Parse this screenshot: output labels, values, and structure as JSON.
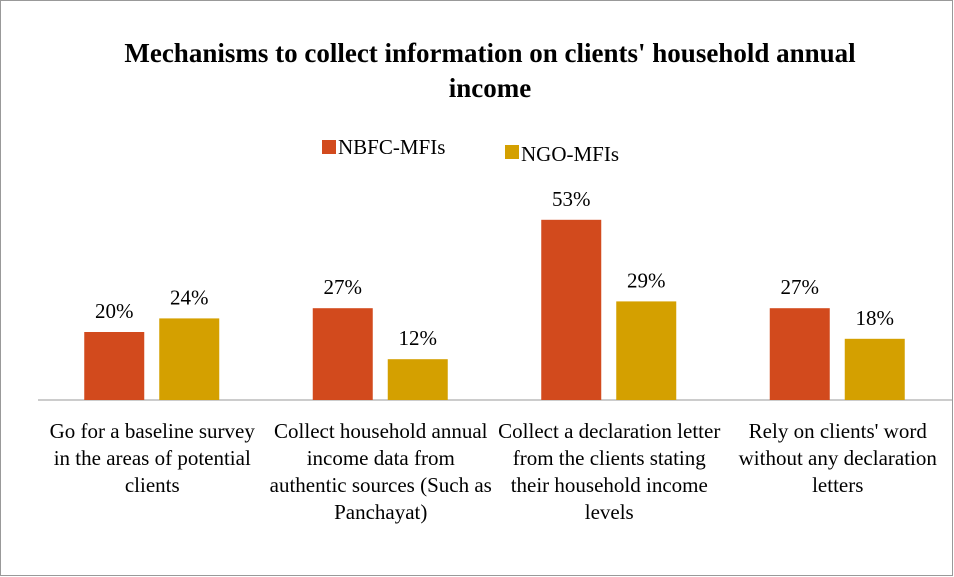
{
  "chart_data": {
    "type": "bar",
    "title": "Mechanisms to collect information on  clients' household annual income",
    "categories": [
      "Go for a baseline survey in the areas of potential clients",
      "Collect household annual income data from authentic sources (Such as Panchayat)",
      "Collect a declaration letter from the clients stating their household income levels",
      "Rely on clients' word without any declaration letters"
    ],
    "series": [
      {
        "name": "NBFC-MFIs",
        "color": "#d24a1d",
        "values": [
          20,
          27,
          53,
          27
        ],
        "value_labels": [
          "20%",
          "27%",
          "53%",
          "27%"
        ]
      },
      {
        "name": "NGO-MFIs",
        "color": "#d4a000",
        "values": [
          24,
          12,
          29,
          18
        ],
        "value_labels": [
          "24%",
          "12%",
          "29%",
          "18%"
        ]
      }
    ],
    "ylim": [
      0,
      60
    ],
    "legend": "top"
  }
}
